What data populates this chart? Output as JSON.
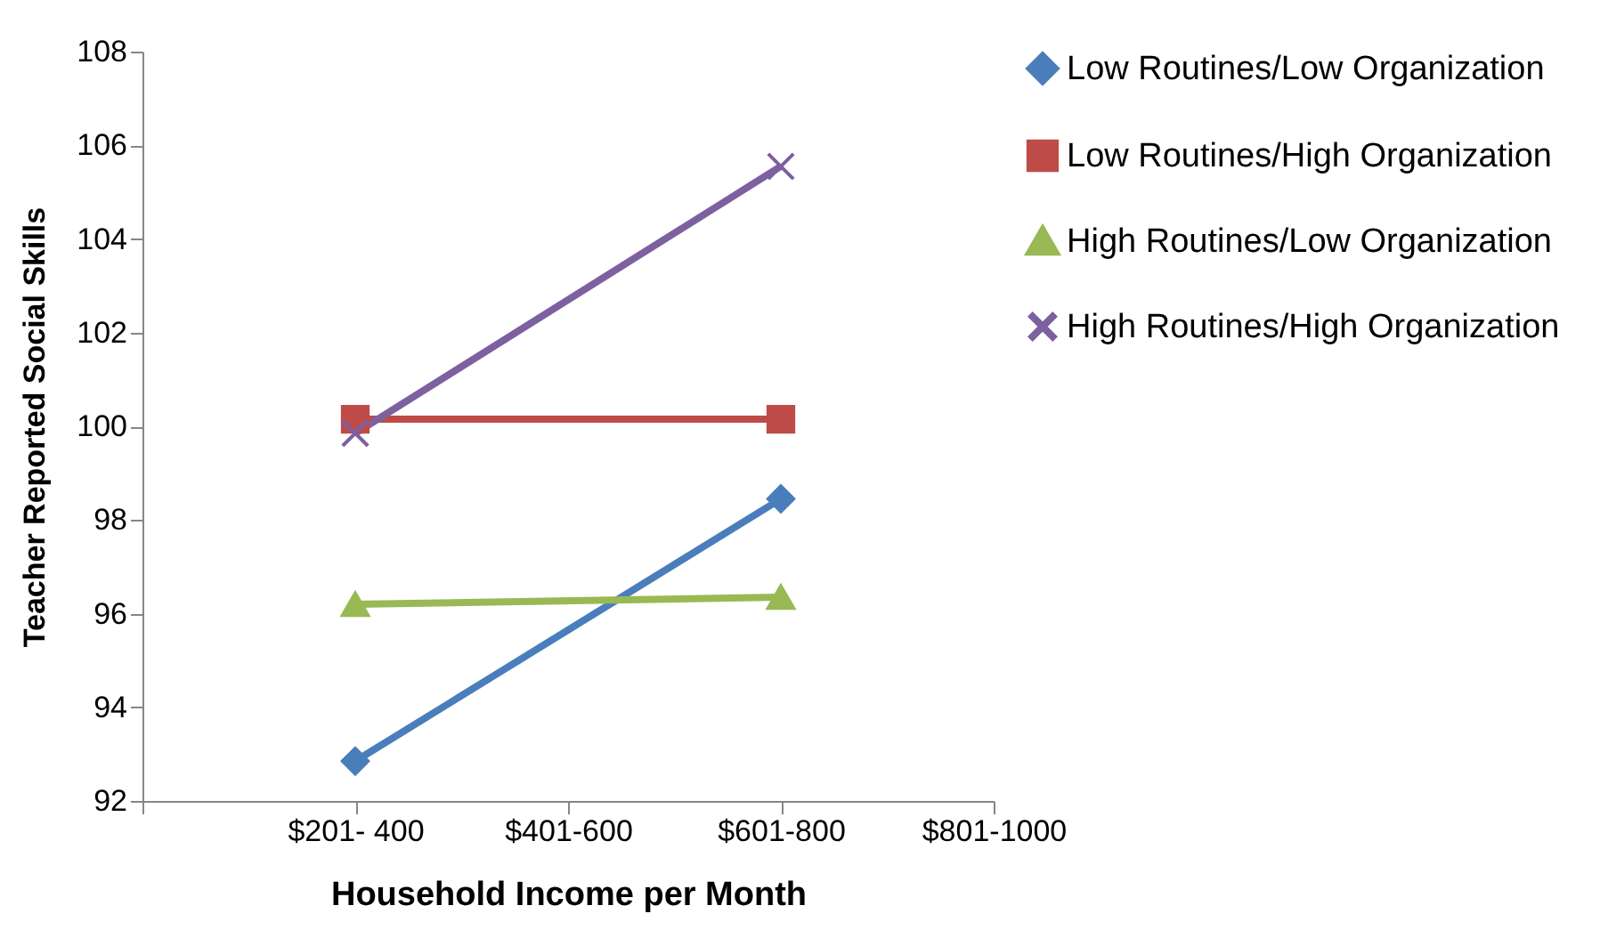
{
  "chart_data": {
    "type": "line",
    "xlabel": "Household Income per Month",
    "ylabel": "Teacher Reported Social Skills",
    "categories": [
      null,
      "$201- 400",
      "$401-600",
      "$601-800",
      "$801-1000"
    ],
    "series": [
      {
        "name": "Low Routines/Low Organization",
        "color": "#4a7ebb",
        "marker": "diamond",
        "values": [
          null,
          92.85,
          null,
          98.45,
          null
        ]
      },
      {
        "name": "Low Routines/High Organization",
        "color": "#be4b48",
        "marker": "square",
        "values": [
          null,
          100.15,
          null,
          100.15,
          null
        ]
      },
      {
        "name": "High Routines/Low Organization",
        "color": "#98b954",
        "marker": "triangle",
        "values": [
          null,
          96.2,
          null,
          96.35,
          null
        ]
      },
      {
        "name": "High Routines/High Organization",
        "color": "#7d60a0",
        "marker": "cross",
        "values": [
          null,
          99.85,
          null,
          105.55,
          null
        ]
      }
    ],
    "ylim": [
      92,
      108
    ],
    "yticks": [
      92,
      94,
      96,
      98,
      100,
      102,
      104,
      106,
      108
    ],
    "grid": false,
    "legend": "right",
    "line_style": "solid"
  }
}
